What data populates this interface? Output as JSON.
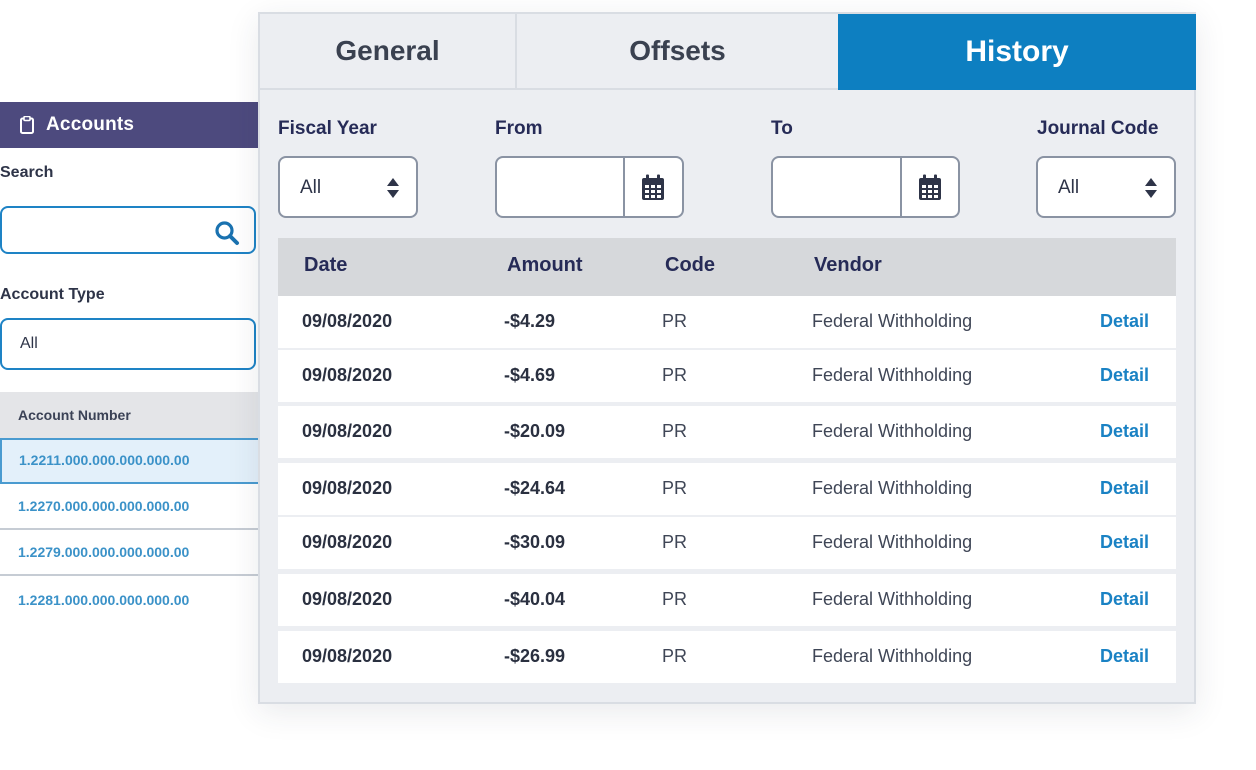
{
  "accounts_panel": {
    "header": "Accounts",
    "search_label": "Search",
    "search_value": "",
    "account_type_label": "Account Type",
    "account_type_value": "All",
    "account_number_header": "Account Number",
    "accounts": [
      "1.2211.000.000.000.000.00",
      "1.2270.000.000.000.000.00",
      "1.2279.000.000.000.000.00",
      "1.2281.000.000.000.000.00"
    ]
  },
  "tabs": [
    "General",
    "Offsets",
    "History"
  ],
  "active_tab": "History",
  "filters": {
    "fiscal_year_label": "Fiscal Year",
    "fiscal_year_value": "All",
    "from_label": "From",
    "from_value": "",
    "to_label": "To",
    "to_value": "",
    "journal_code_label": "Journal Code",
    "journal_code_value": "All"
  },
  "table": {
    "headers": [
      "Date",
      "Amount",
      "Code",
      "Vendor"
    ],
    "rows": [
      {
        "date": "09/08/2020",
        "amount": "-$4.29",
        "code": "PR",
        "vendor": "Federal Withholding",
        "action": "Detail"
      },
      {
        "date": "09/08/2020",
        "amount": "-$4.69",
        "code": "PR",
        "vendor": "Federal Withholding",
        "action": "Detail"
      },
      {
        "date": "09/08/2020",
        "amount": "-$20.09",
        "code": "PR",
        "vendor": "Federal Withholding",
        "action": "Detail"
      },
      {
        "date": "09/08/2020",
        "amount": "-$24.64",
        "code": "PR",
        "vendor": "Federal Withholding",
        "action": "Detail"
      },
      {
        "date": "09/08/2020",
        "amount": "-$30.09",
        "code": "PR",
        "vendor": "Federal Withholding",
        "action": "Detail"
      },
      {
        "date": "09/08/2020",
        "amount": "-$40.04",
        "code": "PR",
        "vendor": "Federal Withholding",
        "action": "Detail"
      },
      {
        "date": "09/08/2020",
        "amount": "-$26.99",
        "code": "PR",
        "vendor": "Federal Withholding",
        "action": "Detail"
      }
    ]
  },
  "colors": {
    "accent": "#0d7fc1",
    "sidebar_header": "#4d4a7e",
    "link": "#1a82c4"
  },
  "icons": {
    "header": "clipboard-icon",
    "search": "search-icon",
    "calendar": "calendar-icon",
    "select": "sort-arrows-icon"
  }
}
